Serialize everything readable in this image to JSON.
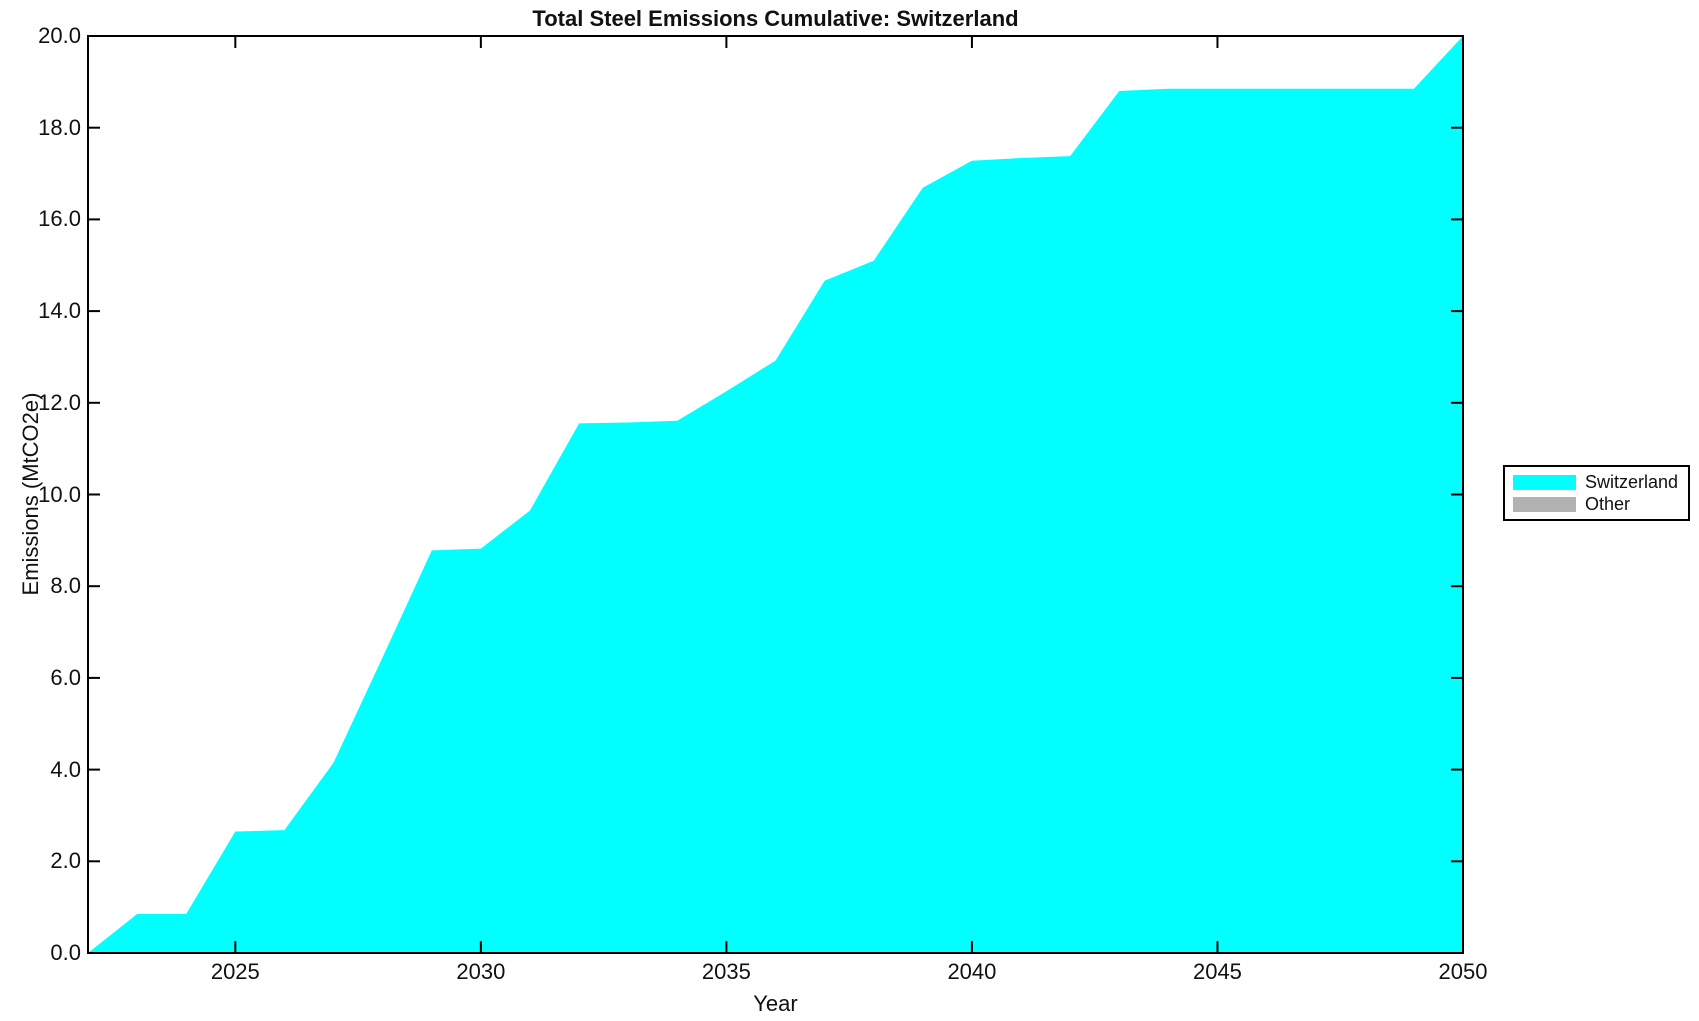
{
  "chart_data": {
    "type": "area",
    "title": "Total Steel Emissions Cumulative: Switzerland",
    "xlabel": "Year",
    "ylabel": "Emissions (MtCO2e)",
    "xlim": [
      2022,
      2050
    ],
    "ylim": [
      0.0,
      20.0
    ],
    "xticks": [
      2025,
      2030,
      2035,
      2040,
      2045,
      2050
    ],
    "ytick_labels": [
      "0.0",
      "2.0",
      "4.0",
      "6.0",
      "8.0",
      "10.0",
      "12.0",
      "14.0",
      "16.0",
      "18.0",
      "20.0"
    ],
    "grid": false,
    "legend_position": "right-middle-outside",
    "x": [
      2022,
      2023,
      2024,
      2025,
      2026,
      2027,
      2028,
      2029,
      2030,
      2031,
      2032,
      2033,
      2034,
      2035,
      2036,
      2037,
      2038,
      2039,
      2040,
      2041,
      2042,
      2043,
      2044,
      2045,
      2046,
      2047,
      2048,
      2049,
      2050
    ],
    "series": [
      {
        "name": "Switzerland",
        "color": "#00FFFF",
        "values": [
          0.0,
          0.85,
          0.85,
          2.65,
          2.68,
          4.15,
          6.45,
          8.78,
          8.82,
          9.65,
          11.55,
          11.57,
          11.61,
          12.25,
          12.92,
          14.66,
          15.1,
          16.69,
          17.28,
          17.34,
          17.38,
          18.8,
          18.85,
          18.85,
          18.85,
          18.85,
          18.85,
          18.85,
          20.0
        ]
      },
      {
        "name": "Other",
        "color": "#B2B2B2",
        "values": []
      }
    ]
  }
}
